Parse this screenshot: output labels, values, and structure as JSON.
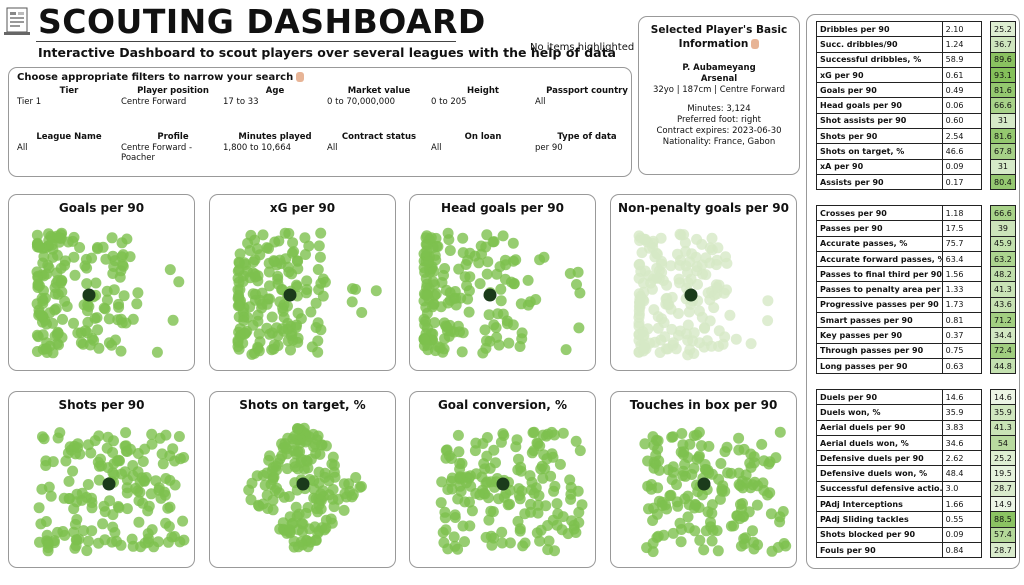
{
  "header": {
    "title": "SCOUTING DASHBOARD",
    "subtitle": "Interactive Dashboard to scout players over several leagues with the help of data",
    "highlight_status": "No items highlighted"
  },
  "filters": {
    "heading": "Choose appropriate filters to narrow your search",
    "items": [
      {
        "label": "Tier",
        "value": "Tier 1"
      },
      {
        "label": "Player position",
        "value": "Centre Forward"
      },
      {
        "label": "Age",
        "value": "17 to 33"
      },
      {
        "label": "Market value",
        "value": "0 to 70,000,000"
      },
      {
        "label": "Height",
        "value": "0 to 205"
      },
      {
        "label": "Passport country",
        "value": "All"
      },
      {
        "label": "League Name",
        "value": "All"
      },
      {
        "label": "Profile",
        "value": "Centre Forward - Poacher"
      },
      {
        "label": "Minutes played",
        "value": "1,800 to 10,664"
      },
      {
        "label": "Contract status",
        "value": "All"
      },
      {
        "label": "On loan",
        "value": "All"
      },
      {
        "label": "Type of data",
        "value": "per 90"
      }
    ]
  },
  "selected_player": {
    "heading": "Selected Player's Basic Information",
    "name": "P. Aubameyang",
    "club": "Arsenal",
    "bio": "32yo | 187cm | Centre Forward",
    "minutes": "Minutes: 3,124",
    "foot": "Preferred foot: right",
    "contract": "Contract expires: 2023-06-30",
    "nationality": "Nationality: France, Gabon"
  },
  "charts": [
    {
      "title": "Goals per 90",
      "faded": false
    },
    {
      "title": "xG per 90",
      "faded": false
    },
    {
      "title": "Head goals per 90",
      "faded": false
    },
    {
      "title": "Non-penalty goals per 90",
      "faded": true
    },
    {
      "title": "Shots per 90",
      "faded": false
    },
    {
      "title": "Shots on target, %",
      "faded": false
    },
    {
      "title": "Goal conversion, %",
      "faded": false
    },
    {
      "title": "Touches in box per 90",
      "faded": false
    }
  ],
  "colors": {
    "dot": "#7dc04e",
    "dot_faded": "#d6e9c6",
    "selected": "#1b3b1b",
    "pct_low": "#ffffff",
    "pct_high": "#7cbb4e"
  },
  "stats": [
    [
      {
        "name": "Dribbles per 90",
        "value": "2.10",
        "pct": "25.2"
      },
      {
        "name": "Succ. dribbles/90",
        "value": "1.24",
        "pct": "36.7"
      },
      {
        "name": "Successful dribbles, %",
        "value": "58.9",
        "pct": "89.6"
      },
      {
        "name": "xG per 90",
        "value": "0.61",
        "pct": "93.1"
      },
      {
        "name": "Goals per 90",
        "value": "0.49",
        "pct": "81.6"
      },
      {
        "name": "Head goals per 90",
        "value": "0.06",
        "pct": "66.6"
      },
      {
        "name": "Shot assists per 90",
        "value": "0.60",
        "pct": "31"
      },
      {
        "name": "Shots per 90",
        "value": "2.54",
        "pct": "81.6"
      },
      {
        "name": "Shots on target, %",
        "value": "46.6",
        "pct": "67.8"
      },
      {
        "name": "xA per 90",
        "value": "0.09",
        "pct": "31"
      },
      {
        "name": "Assists per 90",
        "value": "0.17",
        "pct": "80.4"
      }
    ],
    [
      {
        "name": "Crosses per 90",
        "value": "1.18",
        "pct": "66.6"
      },
      {
        "name": "Passes per 90",
        "value": "17.5",
        "pct": "39"
      },
      {
        "name": "Accurate passes, %",
        "value": "75.7",
        "pct": "45.9"
      },
      {
        "name": "Accurate forward passes, %",
        "value": "63.4",
        "pct": "63.2"
      },
      {
        "name": "Passes to final third per 90",
        "value": "1.56",
        "pct": "48.2"
      },
      {
        "name": "Passes to penalty area per ..",
        "value": "1.33",
        "pct": "41.3"
      },
      {
        "name": "Progressive passes per 90",
        "value": "1.73",
        "pct": "43.6"
      },
      {
        "name": "Smart passes per 90",
        "value": "0.81",
        "pct": "71.2"
      },
      {
        "name": "Key passes per 90",
        "value": "0.37",
        "pct": "34.4"
      },
      {
        "name": "Through passes per 90",
        "value": "0.75",
        "pct": "72.4"
      },
      {
        "name": "Long passes per 90",
        "value": "0.63",
        "pct": "44.8"
      }
    ],
    [
      {
        "name": "Duels per 90",
        "value": "14.6",
        "pct": "14.6"
      },
      {
        "name": "Duels won, %",
        "value": "35.9",
        "pct": "35.9"
      },
      {
        "name": "Aerial duels per 90",
        "value": "3.83",
        "pct": "41.3"
      },
      {
        "name": "Aerial duels won, %",
        "value": "34.6",
        "pct": "54"
      },
      {
        "name": "Defensive duels per 90",
        "value": "2.62",
        "pct": "25.2"
      },
      {
        "name": "Defensive duels won, %",
        "value": "48.4",
        "pct": "19.5"
      },
      {
        "name": "Successful defensive actio..",
        "value": "3.0",
        "pct": "28.7"
      },
      {
        "name": "PAdj Interceptions",
        "value": "1.66",
        "pct": "14.9"
      },
      {
        "name": "PAdj Sliding tackles",
        "value": "0.55",
        "pct": "88.5"
      },
      {
        "name": "Shots blocked per 90",
        "value": "0.09",
        "pct": "57.4"
      },
      {
        "name": "Fouls per 90",
        "value": "0.84",
        "pct": "28.7"
      }
    ]
  ]
}
